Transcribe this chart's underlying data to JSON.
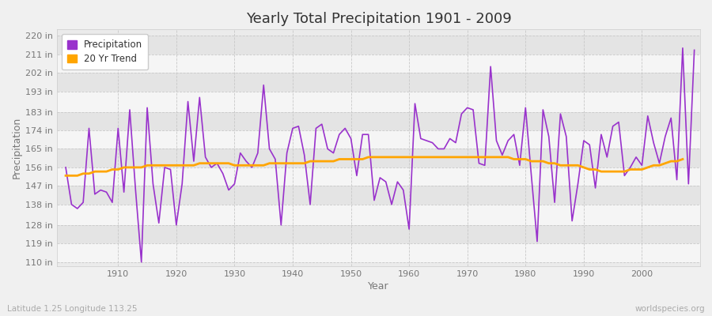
{
  "title": "Yearly Total Precipitation 1901 - 2009",
  "xlabel": "Year",
  "ylabel": "Precipitation",
  "bottom_left_label": "Latitude 1.25 Longitude 113.25",
  "bottom_right_label": "worldspecies.org",
  "precip_color": "#9932CC",
  "trend_color": "#FFA500",
  "background_color": "#F0F0F0",
  "plot_bg_color": "#EBEBEB",
  "band_color_light": "#F5F5F5",
  "band_color_dark": "#E4E4E4",
  "grid_color": "#FFFFFF",
  "ytick_labels": [
    "110 in",
    "119 in",
    "128 in",
    "138 in",
    "147 in",
    "156 in",
    "165 in",
    "174 in",
    "183 in",
    "193 in",
    "202 in",
    "211 in",
    "220 in"
  ],
  "ytick_values": [
    110,
    119,
    128,
    138,
    147,
    156,
    165,
    174,
    183,
    193,
    202,
    211,
    220
  ],
  "ylim": [
    108,
    223
  ],
  "xlim": [
    1899.5,
    2010
  ],
  "years": [
    1901,
    1902,
    1903,
    1904,
    1905,
    1906,
    1907,
    1908,
    1909,
    1910,
    1911,
    1912,
    1913,
    1914,
    1915,
    1916,
    1917,
    1918,
    1919,
    1920,
    1921,
    1922,
    1923,
    1924,
    1925,
    1926,
    1927,
    1928,
    1929,
    1930,
    1931,
    1932,
    1933,
    1934,
    1935,
    1936,
    1937,
    1938,
    1939,
    1940,
    1941,
    1942,
    1943,
    1944,
    1945,
    1946,
    1947,
    1948,
    1949,
    1950,
    1951,
    1952,
    1953,
    1954,
    1955,
    1956,
    1957,
    1958,
    1959,
    1960,
    1961,
    1962,
    1963,
    1964,
    1965,
    1966,
    1967,
    1968,
    1969,
    1970,
    1971,
    1972,
    1973,
    1974,
    1975,
    1976,
    1977,
    1978,
    1979,
    1980,
    1981,
    1982,
    1983,
    1984,
    1985,
    1986,
    1987,
    1988,
    1989,
    1990,
    1991,
    1992,
    1993,
    1994,
    1995,
    1996,
    1997,
    1998,
    1999,
    2000,
    2001,
    2002,
    2003,
    2004,
    2005,
    2006,
    2007,
    2008,
    2009
  ],
  "precip": [
    156,
    138,
    136,
    139,
    175,
    143,
    145,
    144,
    139,
    175,
    144,
    184,
    145,
    110,
    185,
    148,
    129,
    156,
    155,
    128,
    148,
    188,
    159,
    190,
    161,
    156,
    158,
    153,
    145,
    148,
    163,
    159,
    156,
    163,
    196,
    165,
    160,
    128,
    163,
    175,
    176,
    162,
    138,
    175,
    177,
    165,
    163,
    172,
    175,
    170,
    152,
    172,
    172,
    140,
    151,
    149,
    138,
    149,
    145,
    126,
    187,
    170,
    169,
    168,
    165,
    165,
    170,
    168,
    182,
    185,
    184,
    158,
    157,
    205,
    169,
    162,
    169,
    172,
    157,
    185,
    152,
    120,
    184,
    171,
    139,
    182,
    171,
    130,
    148,
    169,
    167,
    146,
    172,
    161,
    176,
    178,
    152,
    156,
    161,
    157,
    181,
    168,
    158,
    171,
    180,
    150,
    214,
    148,
    213
  ],
  "trend": [
    152,
    152,
    152,
    153,
    153,
    154,
    154,
    154,
    155,
    155,
    156,
    156,
    156,
    156,
    157,
    157,
    157,
    157,
    157,
    157,
    157,
    157,
    157,
    158,
    158,
    158,
    158,
    158,
    158,
    157,
    157,
    157,
    157,
    157,
    157,
    158,
    158,
    158,
    158,
    158,
    158,
    158,
    159,
    159,
    159,
    159,
    159,
    160,
    160,
    160,
    160,
    160,
    161,
    161,
    161,
    161,
    161,
    161,
    161,
    161,
    161,
    161,
    161,
    161,
    161,
    161,
    161,
    161,
    161,
    161,
    161,
    161,
    161,
    161,
    161,
    161,
    161,
    160,
    160,
    160,
    159,
    159,
    159,
    158,
    158,
    157,
    157,
    157,
    157,
    156,
    155,
    155,
    154,
    154,
    154,
    154,
    154,
    155,
    155,
    155,
    156,
    157,
    157,
    158,
    159,
    159,
    160,
    null,
    null
  ]
}
